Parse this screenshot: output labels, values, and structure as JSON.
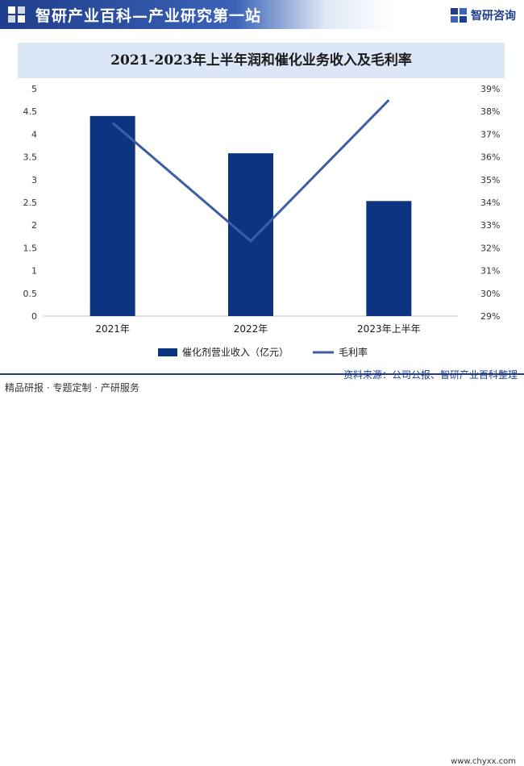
{
  "header": {
    "site_title": "智研产业百科—产业研究第一站",
    "brand_name": "智研咨询"
  },
  "chart_data": {
    "type": "bar",
    "title": "2021-2023年上半年润和催化业务收入及毛利率",
    "categories": [
      "2021年",
      "2022年",
      "2023年上半年"
    ],
    "series": [
      {
        "name": "催化剂营业收入（亿元）",
        "type": "bar",
        "axis": "left",
        "values": [
          4.4,
          3.58,
          2.53
        ]
      },
      {
        "name": "毛利率",
        "type": "line",
        "axis": "right",
        "values": [
          37.5,
          32.3,
          38.5
        ]
      }
    ],
    "y_left": {
      "min": 0,
      "max": 5,
      "ticks": [
        "0",
        "0.5",
        "1",
        "1.5",
        "2",
        "2.5",
        "3",
        "3.5",
        "4",
        "4.5",
        "5"
      ]
    },
    "y_right": {
      "min": 29,
      "max": 39,
      "ticks": [
        "29%",
        "30%",
        "31%",
        "32%",
        "33%",
        "34%",
        "35%",
        "36%",
        "37%",
        "38%",
        "39%"
      ]
    },
    "grid": false,
    "legend_position": "bottom",
    "colors": {
      "bar": "#0d3480",
      "line": "#3b5ea6",
      "axis_text": "#333333"
    }
  },
  "footer": {
    "left": "精品研报 · 专题定制 · 产研服务",
    "source": "资料来源：公司公报、智研产业百科整理",
    "url": "www.chyxx.com"
  }
}
